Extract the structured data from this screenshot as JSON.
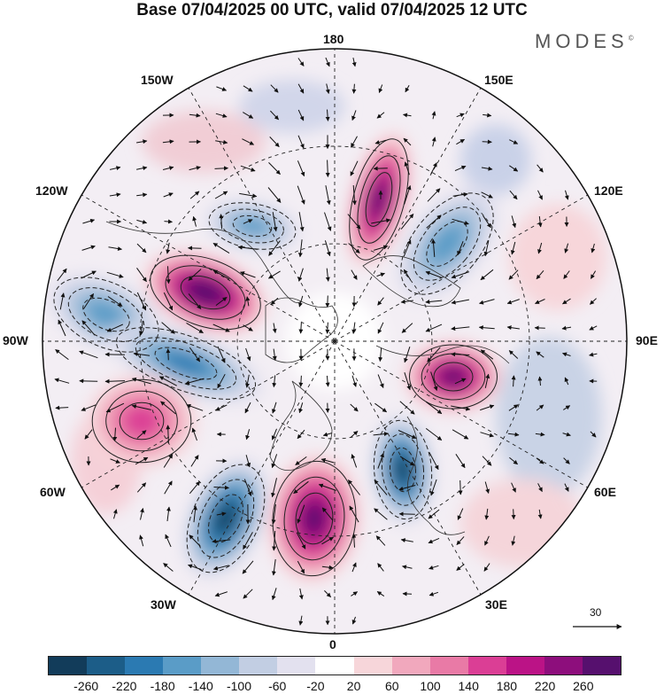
{
  "title": "Base 07/04/2025 00 UTC, valid 07/04/2025 12 UTC",
  "brand": {
    "name": "MODES",
    "mark": "©"
  },
  "map": {
    "projection": "north-polar-stereographic",
    "meridian_labels": [
      {
        "id": "lon-180",
        "text": "180"
      },
      {
        "id": "lon-150e",
        "text": "150E"
      },
      {
        "id": "lon-120e",
        "text": "120E"
      },
      {
        "id": "lon-90e",
        "text": "90E"
      },
      {
        "id": "lon-60e",
        "text": "60E"
      },
      {
        "id": "lon-30e",
        "text": "30E"
      },
      {
        "id": "lon-0",
        "text": "0"
      },
      {
        "id": "lon-30w",
        "text": "30W"
      },
      {
        "id": "lon-60w",
        "text": "60W"
      },
      {
        "id": "lon-90w",
        "text": "90W"
      },
      {
        "id": "lon-120w",
        "text": "120W"
      },
      {
        "id": "lon-150w",
        "text": "150W"
      }
    ],
    "reference_vector": {
      "value": "30"
    }
  },
  "legend": {
    "colors": [
      "#123c5a",
      "#1c5d88",
      "#2b7ab2",
      "#5a9cc7",
      "#93b7d6",
      "#c2cee3",
      "#e3e1ef",
      "#ffffff",
      "#f7d6da",
      "#f1a8bd",
      "#e97aa6",
      "#db3e95",
      "#bb1386",
      "#8d0e7c",
      "#56106e"
    ],
    "ticks": [
      "-260",
      "-220",
      "-180",
      "-140",
      "-100",
      "-60",
      "-20",
      "20",
      "60",
      "100",
      "140",
      "180",
      "220",
      "260"
    ]
  },
  "anomaly_centers": [
    {
      "id": "low-west-canada",
      "sign": "negative",
      "level": 3
    },
    {
      "id": "high-north-canada",
      "sign": "positive",
      "level": 7
    },
    {
      "id": "low-hudson",
      "sign": "negative",
      "level": 4
    },
    {
      "id": "low-alaska",
      "sign": "negative",
      "level": 3
    },
    {
      "id": "high-bering",
      "sign": "positive",
      "level": 6
    },
    {
      "id": "low-east-siberia",
      "sign": "negative",
      "level": 3
    },
    {
      "id": "high-central-siberia",
      "sign": "positive",
      "level": 6
    },
    {
      "id": "low-scandinavia",
      "sign": "negative",
      "level": 6
    },
    {
      "id": "high-greenland",
      "sign": "positive",
      "level": 6
    },
    {
      "id": "low-north-atlantic",
      "sign": "negative",
      "level": 6
    },
    {
      "id": "high-east-us",
      "sign": "positive",
      "level": 3
    }
  ]
}
